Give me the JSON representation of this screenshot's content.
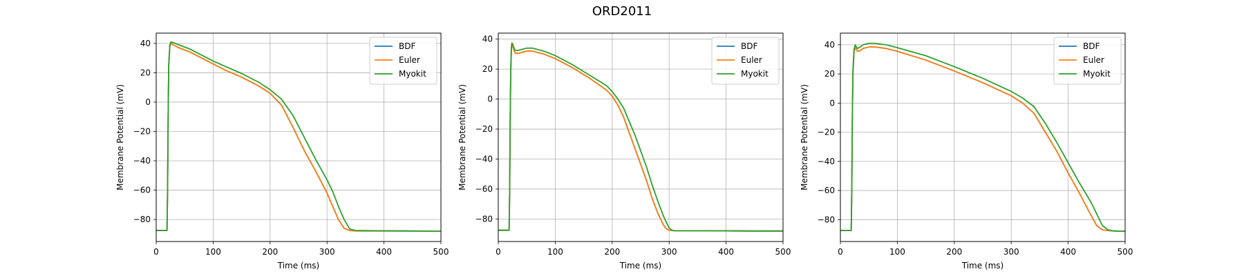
{
  "figure": {
    "title": "ORD2011"
  },
  "chart_data": [
    {
      "type": "line",
      "xlabel": "Time (ms)",
      "ylabel": "Membrane Potential (mV)",
      "xlim": [
        0,
        500
      ],
      "ylim": [
        -95,
        47
      ],
      "xticks": [
        0,
        100,
        200,
        300,
        400,
        500
      ],
      "yticks": [
        -80,
        -60,
        -40,
        -20,
        0,
        20,
        40
      ],
      "grid": true,
      "legend": "upper-right",
      "series": [
        {
          "name": "BDF",
          "color": "#1f77b4",
          "x": [
            0,
            19,
            20,
            21,
            22,
            24,
            26,
            30,
            40,
            60,
            80,
            100,
            120,
            150,
            180,
            200,
            220,
            240,
            260,
            280,
            300,
            310,
            320,
            330,
            340,
            350,
            400,
            450,
            500
          ],
          "y": [
            -87.5,
            -87.5,
            -60,
            -10,
            25,
            38,
            40,
            39,
            37,
            34,
            30,
            26,
            22,
            17,
            11,
            6,
            -2,
            -17,
            -33,
            -47,
            -62,
            -71,
            -80,
            -86,
            -87.5,
            -87.8,
            -87.8,
            -87.9,
            -88
          ]
        },
        {
          "name": "Euler",
          "color": "#ff7f0e",
          "x": [
            0,
            19,
            20,
            21,
            22,
            24,
            26,
            30,
            40,
            60,
            80,
            100,
            120,
            150,
            180,
            200,
            220,
            240,
            260,
            280,
            300,
            310,
            320,
            330,
            340,
            350,
            400,
            450,
            500
          ],
          "y": [
            -87.5,
            -87.5,
            -60,
            -10,
            25,
            38,
            40,
            39,
            37,
            34,
            30,
            26,
            22,
            17,
            11,
            6,
            -2,
            -17,
            -33,
            -47,
            -62,
            -71,
            -80,
            -86,
            -87.5,
            -87.8,
            -87.8,
            -87.9,
            -88
          ]
        },
        {
          "name": "Myokit",
          "color": "#2ca02c",
          "x": [
            0,
            19,
            20,
            21,
            22,
            24,
            26,
            30,
            40,
            60,
            80,
            100,
            120,
            150,
            180,
            200,
            220,
            240,
            260,
            280,
            300,
            310,
            320,
            330,
            340,
            350,
            400,
            450,
            500
          ],
          "y": [
            -87.5,
            -87.5,
            -60,
            -10,
            25,
            39,
            41,
            40.5,
            39,
            36,
            32,
            28,
            24.5,
            19.5,
            13.5,
            8.5,
            2,
            -9,
            -24,
            -39,
            -53,
            -61,
            -71,
            -80,
            -86.5,
            -87.5,
            -87.7,
            -87.8,
            -88
          ]
        }
      ]
    },
    {
      "type": "line",
      "xlabel": "Time (ms)",
      "ylabel": "Membrane Potential (mV)",
      "xlim": [
        0,
        500
      ],
      "ylim": [
        -95,
        44
      ],
      "xticks": [
        0,
        100,
        200,
        300,
        400,
        500
      ],
      "yticks": [
        -80,
        -60,
        -40,
        -20,
        0,
        20,
        40
      ],
      "grid": true,
      "legend": "upper-right",
      "series": [
        {
          "name": "BDF",
          "color": "#1f77b4",
          "x": [
            0,
            19,
            20,
            21,
            22,
            23,
            24,
            26,
            28,
            30,
            35,
            40,
            50,
            60,
            80,
            100,
            130,
            160,
            190,
            200,
            210,
            220,
            240,
            260,
            270,
            280,
            290,
            295,
            300,
            310,
            350,
            400,
            450,
            500
          ],
          "y": [
            -87.5,
            -87.5,
            -60,
            -10,
            20,
            33,
            36.5,
            35,
            32,
            30.5,
            30.5,
            31,
            32,
            32,
            30,
            27,
            21,
            14,
            6,
            2,
            -4,
            -12,
            -33,
            -54,
            -66,
            -76,
            -84,
            -86.5,
            -87.5,
            -87.8,
            -87.8,
            -87.9,
            -88,
            -88
          ]
        },
        {
          "name": "Euler",
          "color": "#ff7f0e",
          "x": [
            0,
            19,
            20,
            21,
            22,
            23,
            24,
            26,
            28,
            30,
            35,
            40,
            50,
            60,
            80,
            100,
            130,
            160,
            190,
            200,
            210,
            220,
            240,
            260,
            270,
            280,
            290,
            295,
            300,
            310,
            350,
            400,
            450,
            500
          ],
          "y": [
            -87.5,
            -87.5,
            -60,
            -10,
            20,
            33,
            36.5,
            35,
            32,
            30.5,
            30.5,
            31,
            32,
            32,
            30,
            27,
            21,
            14,
            6,
            2,
            -4,
            -12,
            -33,
            -54,
            -66,
            -76,
            -84,
            -86.5,
            -87.5,
            -87.8,
            -87.8,
            -87.9,
            -88,
            -88
          ]
        },
        {
          "name": "Myokit",
          "color": "#2ca02c",
          "x": [
            0,
            19,
            20,
            21,
            22,
            23,
            24,
            26,
            28,
            30,
            35,
            40,
            50,
            60,
            80,
            100,
            130,
            160,
            190,
            200,
            210,
            220,
            240,
            260,
            270,
            280,
            290,
            300,
            305,
            310,
            350,
            400,
            450,
            500
          ],
          "y": [
            -87.5,
            -87.5,
            -60,
            -10,
            22,
            35,
            37.5,
            36,
            33.5,
            32.5,
            32.5,
            33,
            34,
            34,
            32,
            29,
            23,
            16,
            9,
            5,
            0,
            -6,
            -24,
            -45,
            -57,
            -68,
            -78,
            -86,
            -87.5,
            -87.8,
            -87.8,
            -87.9,
            -88,
            -88
          ]
        }
      ]
    },
    {
      "type": "line",
      "xlabel": "Time (ms)",
      "ylabel": "Membrane Potential (mV)",
      "xlim": [
        0,
        500
      ],
      "ylim": [
        -95,
        48
      ],
      "xticks": [
        0,
        100,
        200,
        300,
        400,
        500
      ],
      "yticks": [
        -80,
        -60,
        -40,
        -20,
        0,
        20,
        40
      ],
      "grid": true,
      "legend": "upper-right",
      "series": [
        {
          "name": "BDF",
          "color": "#1f77b4",
          "x": [
            0,
            19,
            20,
            21,
            22,
            24,
            26,
            28,
            30,
            35,
            40,
            50,
            60,
            80,
            100,
            150,
            200,
            250,
            300,
            320,
            340,
            360,
            380,
            400,
            420,
            440,
            450,
            460,
            470,
            480,
            500
          ],
          "y": [
            -87.5,
            -87.5,
            -60,
            -10,
            20,
            35,
            38,
            37,
            35.5,
            36,
            37.5,
            38.5,
            38.5,
            37.5,
            35.5,
            29.5,
            22,
            14,
            5,
            0,
            -7,
            -20,
            -33,
            -48,
            -62,
            -77,
            -84,
            -87,
            -87.5,
            -87.8,
            -88
          ]
        },
        {
          "name": "Euler",
          "color": "#ff7f0e",
          "x": [
            0,
            19,
            20,
            21,
            22,
            24,
            26,
            28,
            30,
            35,
            40,
            50,
            60,
            80,
            100,
            150,
            200,
            250,
            300,
            320,
            340,
            360,
            380,
            400,
            420,
            440,
            450,
            460,
            470,
            480,
            500
          ],
          "y": [
            -87.5,
            -87.5,
            -60,
            -10,
            20,
            35,
            38,
            37,
            35.5,
            36,
            37.5,
            38.5,
            38.5,
            37.5,
            35.5,
            29.5,
            22,
            14,
            5,
            0,
            -7,
            -20,
            -33,
            -48,
            -62,
            -77,
            -84,
            -87,
            -87.5,
            -87.8,
            -88
          ]
        },
        {
          "name": "Myokit",
          "color": "#2ca02c",
          "x": [
            0,
            19,
            20,
            21,
            22,
            24,
            26,
            28,
            30,
            35,
            40,
            50,
            60,
            80,
            100,
            150,
            200,
            250,
            300,
            320,
            340,
            360,
            380,
            400,
            420,
            440,
            450,
            460,
            470,
            480,
            500
          ],
          "y": [
            -87.5,
            -87.5,
            -60,
            -10,
            22,
            37,
            40,
            38.5,
            37.5,
            38.5,
            40,
            41,
            41,
            40,
            38,
            32.5,
            25,
            17,
            8,
            3.5,
            -2.5,
            -14,
            -27,
            -41,
            -55,
            -68,
            -76,
            -84,
            -87,
            -87.7,
            -88
          ]
        }
      ]
    }
  ]
}
